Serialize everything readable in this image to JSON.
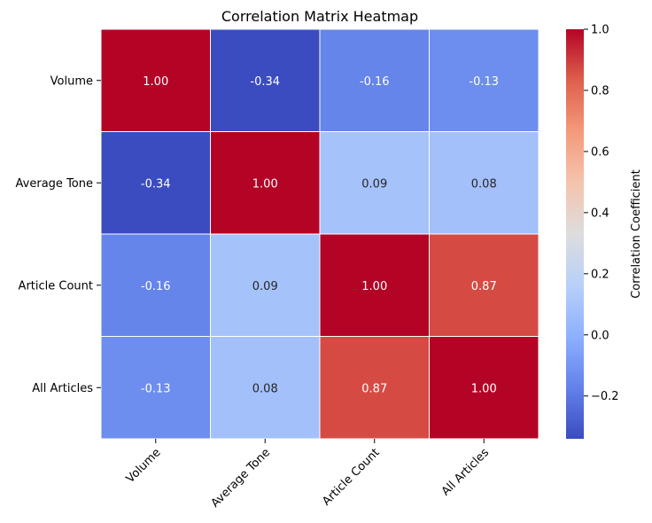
{
  "chart_data": {
    "type": "heatmap",
    "title": "Correlation Matrix Heatmap",
    "rows": [
      "Volume",
      "Average Tone",
      "Article Count",
      "All Articles"
    ],
    "columns": [
      "Volume",
      "Average Tone",
      "Article Count",
      "All Articles"
    ],
    "values": [
      [
        1.0,
        -0.34,
        -0.16,
        -0.13
      ],
      [
        -0.34,
        1.0,
        0.09,
        0.08
      ],
      [
        -0.16,
        0.09,
        1.0,
        0.87
      ],
      [
        -0.13,
        0.08,
        0.87,
        1.0
      ]
    ],
    "value_format": "2 decimals",
    "colormap": "coolwarm",
    "colorbar": {
      "label": "Correlation Coefficient",
      "range": [
        -0.34,
        1.0
      ],
      "ticks": [
        -0.2,
        0.0,
        0.2,
        0.4,
        0.6,
        0.8,
        1.0
      ],
      "tick_labels": [
        "−0.2",
        "0.0",
        "0.2",
        "0.4",
        "0.6",
        "0.8",
        "1.0"
      ]
    },
    "grid": false
  }
}
